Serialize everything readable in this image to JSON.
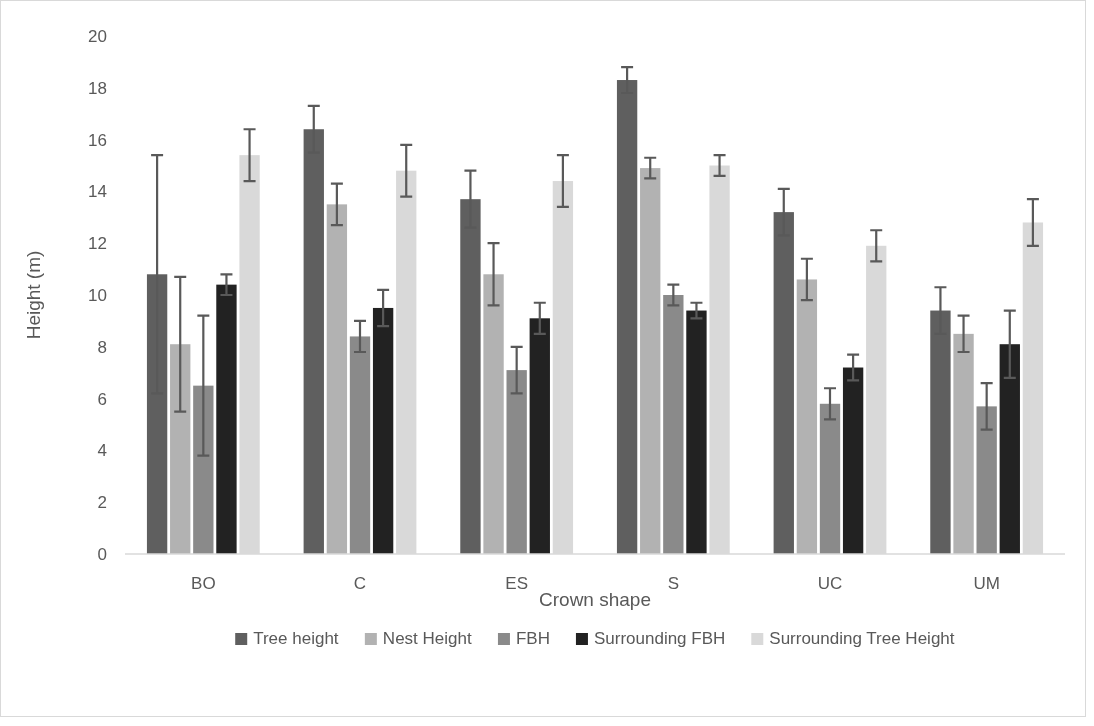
{
  "chart_data": {
    "type": "bar",
    "xlabel": "Crown shape",
    "ylabel": "Height (m)",
    "categories": [
      "BO",
      "C",
      "ES",
      "S",
      "UC",
      "UM"
    ],
    "ylim": [
      0,
      20
    ],
    "yticks": [
      0,
      2,
      4,
      6,
      8,
      10,
      12,
      14,
      16,
      18,
      20
    ],
    "grid": false,
    "legend": "bottom",
    "series": [
      {
        "name": "Tree height",
        "color": "#5f5f5f",
        "values": [
          10.8,
          16.4,
          13.7,
          18.3,
          13.2,
          9.4
        ],
        "errors": [
          4.6,
          0.9,
          1.1,
          0.5,
          0.9,
          0.9
        ]
      },
      {
        "name": "Nest Height",
        "color": "#b2b2b2",
        "values": [
          8.1,
          13.5,
          10.8,
          14.9,
          10.6,
          8.5
        ],
        "errors": [
          2.6,
          0.8,
          1.2,
          0.4,
          0.8,
          0.7
        ]
      },
      {
        "name": "FBH",
        "color": "#8a8a8a",
        "values": [
          6.5,
          8.4,
          7.1,
          10.0,
          5.8,
          5.7
        ],
        "errors": [
          2.7,
          0.6,
          0.9,
          0.4,
          0.6,
          0.9
        ]
      },
      {
        "name": "Surrounding FBH",
        "color": "#222222",
        "values": [
          10.4,
          9.5,
          9.1,
          9.4,
          7.2,
          8.1
        ],
        "errors": [
          0.4,
          0.7,
          0.6,
          0.3,
          0.5,
          1.3
        ]
      },
      {
        "name": "Surrounding Tree Height",
        "color": "#d9d9d9",
        "values": [
          15.4,
          14.8,
          14.4,
          15.0,
          11.9,
          12.8
        ],
        "errors": [
          1.0,
          1.0,
          1.0,
          0.4,
          0.6,
          0.9
        ]
      }
    ]
  }
}
